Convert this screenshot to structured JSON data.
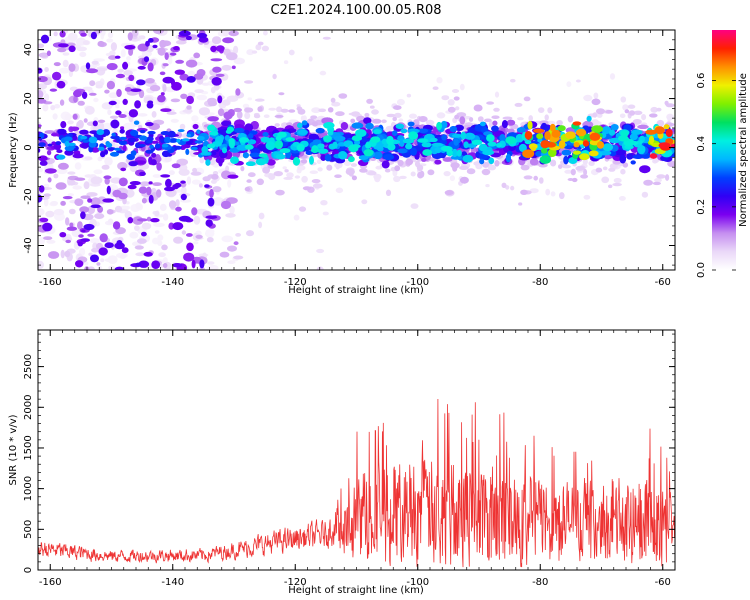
{
  "title": "C2E1.2024.100.00.05.R08",
  "chart_data": [
    {
      "type": "heatmap",
      "xlabel": "Height of straight line (km)",
      "ylabel": "Frequency (Hz)",
      "xlim": [
        -162,
        -58
      ],
      "ylim": [
        -50,
        48
      ],
      "xticks": [
        -160,
        -140,
        -120,
        -100,
        -80,
        -60
      ],
      "yticks": [
        -40,
        -20,
        0,
        20,
        40
      ],
      "colorbar": {
        "label": "Normalized spectral amplitude",
        "range": [
          0,
          0.76
        ],
        "ticks": [
          0.0,
          0.2,
          0.4,
          0.6
        ],
        "colors": [
          "#ffffff",
          "#ead8f8",
          "#c58ef0",
          "#7a00f0",
          "#3000f5",
          "#0040ff",
          "#00b8ff",
          "#00f0e0",
          "#00e060",
          "#80f000",
          "#f0f000",
          "#ff9000",
          "#ff2000",
          "#ff0080"
        ]
      },
      "band": {
        "center_hz": 2,
        "half_width_hz": 6,
        "x_start": -135,
        "x_end": -58
      },
      "scatter_region": {
        "x_start": -162,
        "x_end": -129
      },
      "grid": false
    },
    {
      "type": "line",
      "color": "#ee3333",
      "xlabel": "Height of straight line (km)",
      "ylabel": "SNR (10 * v/v)",
      "xlim": [
        -162,
        -58
      ],
      "ylim": [
        0,
        2950
      ],
      "xticks": [
        -160,
        -140,
        -120,
        -100,
        -80,
        -60
      ],
      "yticks": [
        0,
        500,
        1000,
        1500,
        2000,
        2500
      ],
      "envelope": [
        {
          "x": -162,
          "base": 250,
          "amp": 250
        },
        {
          "x": -150,
          "base": 160,
          "amp": 170
        },
        {
          "x": -135,
          "base": 170,
          "amp": 180
        },
        {
          "x": -130,
          "base": 230,
          "amp": 220
        },
        {
          "x": -125,
          "base": 300,
          "amp": 300
        },
        {
          "x": -115,
          "base": 420,
          "amp": 380
        },
        {
          "x": -112,
          "base": 650,
          "amp": 700
        },
        {
          "x": -109,
          "base": 950,
          "amp": 1400
        },
        {
          "x": -100,
          "base": 1050,
          "amp": 1500
        },
        {
          "x": -90,
          "base": 1000,
          "amp": 1500
        },
        {
          "x": -80,
          "base": 900,
          "amp": 1200
        },
        {
          "x": -75,
          "base": 850,
          "amp": 1150
        },
        {
          "x": -70,
          "base": 750,
          "amp": 900
        },
        {
          "x": -63,
          "base": 800,
          "amp": 1300
        },
        {
          "x": -58,
          "base": 850,
          "amp": 800
        }
      ],
      "grid": false
    }
  ]
}
